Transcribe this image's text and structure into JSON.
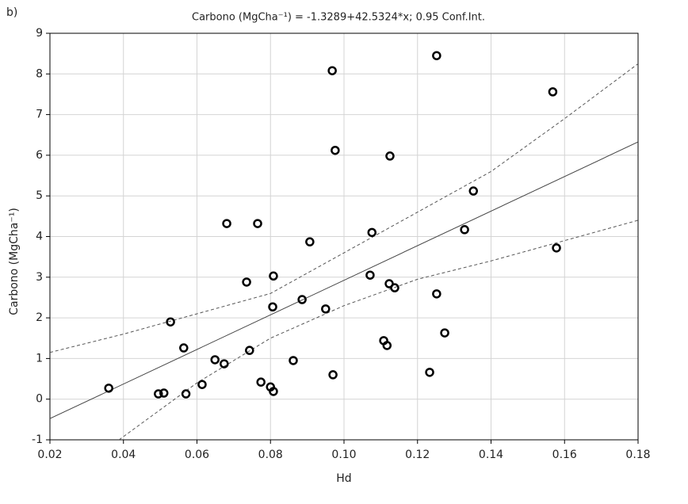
{
  "chart_data": {
    "type": "scatter",
    "panel_label": "b)",
    "title": "Carbono (MgCha⁻¹)  = -1.3289+42.5324*x; 0.95 Conf.Int.",
    "xlabel": "Hd",
    "ylabel": "Carbono (MgCha⁻¹)",
    "xlim": [
      0.02,
      0.18
    ],
    "xticks": [
      0.02,
      0.04,
      0.06,
      0.08,
      {
        "value": 0.1,
        "label": "0.10"
      },
      0.12,
      0.14,
      0.16,
      0.18
    ],
    "ylim": [
      -1,
      9
    ],
    "yticks": [
      -1,
      0,
      1,
      2,
      3,
      4,
      5,
      6,
      7,
      8,
      9
    ],
    "grid": true,
    "series": [
      {
        "color": "#000000",
        "x": [
          0.036,
          0.0495,
          0.051,
          0.0528,
          0.0564,
          0.057,
          0.0614,
          0.0649,
          0.0674,
          0.0681,
          0.0735,
          0.0743,
          0.0765,
          0.0774,
          0.08,
          0.0806,
          0.0808,
          0.0808,
          0.0862,
          0.0886,
          0.0907,
          0.095,
          0.0968,
          0.097,
          0.0976,
          0.1071,
          0.1076,
          0.1108,
          0.1117,
          0.1123,
          0.1125,
          0.1138,
          0.1233,
          0.1252,
          0.1252,
          0.1274,
          0.1328,
          0.1352,
          0.1568,
          0.1578
        ],
        "values": [
          0.27,
          0.13,
          0.15,
          1.9,
          1.26,
          0.13,
          0.36,
          0.97,
          0.87,
          4.32,
          2.88,
          1.2,
          4.32,
          0.42,
          0.3,
          2.27,
          3.03,
          0.19,
          0.95,
          2.45,
          3.87,
          2.22,
          8.08,
          0.6,
          6.12,
          3.05,
          4.1,
          1.44,
          1.32,
          2.84,
          5.98,
          2.74,
          0.66,
          8.45,
          2.59,
          1.63,
          4.17,
          5.12,
          7.56,
          3.72
        ]
      }
    ],
    "fit": {
      "intercept": -1.3289,
      "slope": 42.5324,
      "color": "#444444"
    },
    "confidence_band": {
      "color": "#555555",
      "upper": {
        "x": [
          0.02,
          0.04,
          0.06,
          0.08,
          0.1,
          0.12,
          0.14,
          0.16,
          0.18
        ],
        "values": [
          1.15,
          1.6,
          2.1,
          2.6,
          3.6,
          4.6,
          5.6,
          6.9,
          8.25
        ]
      },
      "lower": {
        "x": [
          0.0388,
          0.06,
          0.08,
          0.1,
          0.12,
          0.14,
          0.16,
          0.18
        ],
        "values": [
          -1,
          0.4,
          1.5,
          2.3,
          2.95,
          3.4,
          3.9,
          4.4
        ]
      }
    }
  }
}
